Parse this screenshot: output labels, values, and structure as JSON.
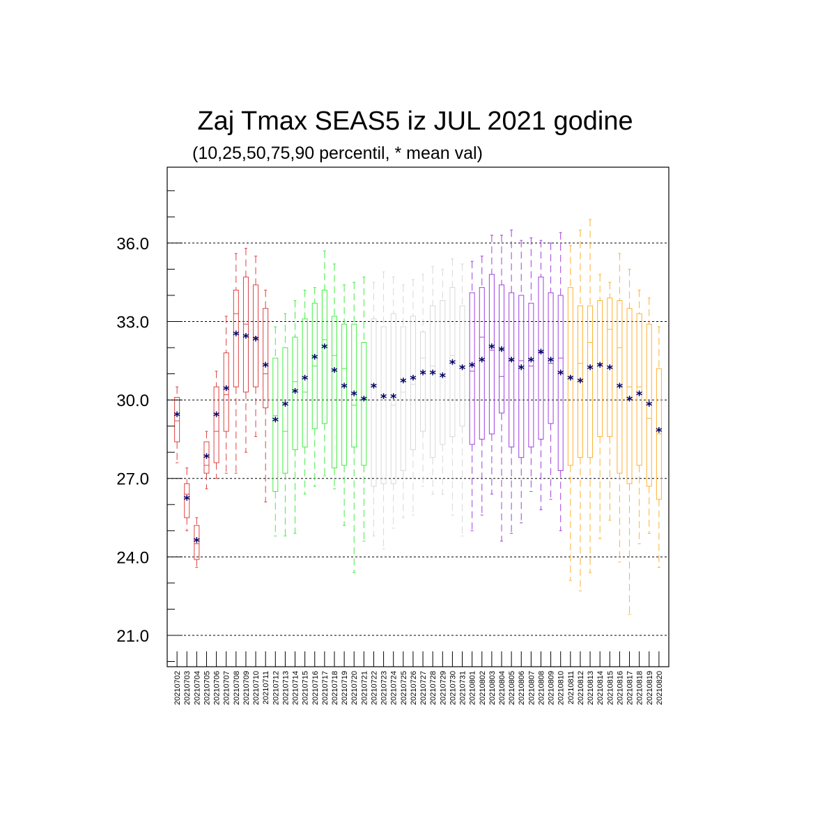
{
  "chart_data": {
    "type": "boxplot",
    "title": "Zaj Tmax SEAS5 iz JUL 2021 godine",
    "subtitle": "(10,25,50,75,90 percentil, * mean val)",
    "xlabel": "",
    "ylabel": "",
    "ylim": [
      19.8,
      38.9
    ],
    "yticks": [
      "21.0",
      "24.0",
      "27.0",
      "30.0",
      "33.0",
      "36.0"
    ],
    "grid": "horizontal dashed at major ticks",
    "mean_marker_color": "#000066",
    "categories": [
      "20210702",
      "20210703",
      "20210704",
      "20210705",
      "20210706",
      "20210707",
      "20210708",
      "20210709",
      "20210710",
      "20210711",
      "20210712",
      "20210713",
      "20210714",
      "20210715",
      "20210716",
      "20210717",
      "20210718",
      "20210719",
      "20210720",
      "20210721",
      "20210722",
      "20210723",
      "20210724",
      "20210725",
      "20210726",
      "20210727",
      "20210728",
      "20210729",
      "20210730",
      "20210731",
      "20210801",
      "20210802",
      "20210803",
      "20210804",
      "20210805",
      "20210806",
      "20210807",
      "20210808",
      "20210809",
      "20210810",
      "20210811",
      "20210812",
      "20210813",
      "20210814",
      "20210815",
      "20210816",
      "20210817",
      "20210818",
      "20210819",
      "20210820"
    ],
    "colors": [
      "#e04040",
      "#e04040",
      "#e04040",
      "#e04040",
      "#e04040",
      "#e04040",
      "#e04040",
      "#e04040",
      "#e04040",
      "#e04040",
      "#40ee40",
      "#40ee40",
      "#40ee40",
      "#40ee40",
      "#40ee40",
      "#40ee40",
      "#40ee40",
      "#40ee40",
      "#40ee40",
      "#40ee40",
      "#d8d8d8",
      "#d8d8d8",
      "#d8d8d8",
      "#d8d8d8",
      "#d8d8d8",
      "#d8d8d8",
      "#d8d8d8",
      "#d8d8d8",
      "#d8d8d8",
      "#d8d8d8",
      "#a040e0",
      "#a040e0",
      "#a040e0",
      "#a040e0",
      "#a040e0",
      "#a040e0",
      "#a040e0",
      "#a040e0",
      "#a040e0",
      "#a040e0",
      "#ffb030",
      "#ffb030",
      "#ffb030",
      "#ffb030",
      "#ffb030",
      "#ffb030",
      "#ffb030",
      "#ffb030",
      "#ffb030",
      "#ffb030"
    ],
    "p10": [
      27.6,
      25.0,
      23.6,
      26.6,
      27.0,
      27.2,
      27.2,
      28.0,
      28.6,
      26.1,
      24.8,
      24.8,
      24.9,
      26.4,
      26.7,
      27.1,
      26.6,
      25.2,
      23.4,
      24.6,
      24.8,
      24.3,
      25.1,
      25.5,
      25.6,
      26.7,
      26.4,
      26.4,
      25.6,
      24.8,
      25.0,
      25.6,
      26.4,
      24.6,
      24.9,
      25.3,
      26.5,
      25.8,
      26.2,
      25.0,
      23.1,
      22.7,
      23.4,
      24.7,
      25.4,
      23.8,
      21.8,
      24.5,
      24.9,
      23.6
    ],
    "p25": [
      28.4,
      25.5,
      23.9,
      27.2,
      27.6,
      28.8,
      30.5,
      30.3,
      30.5,
      29.7,
      26.5,
      27.2,
      28.1,
      28.2,
      28.9,
      29.1,
      27.4,
      27.5,
      28.2,
      27.5,
      26.7,
      26.8,
      26.8,
      27.3,
      28.1,
      28.8,
      27.8,
      28.3,
      28.6,
      29.0,
      28.3,
      28.5,
      28.7,
      29.5,
      28.2,
      27.8,
      28.2,
      28.5,
      29.1,
      27.3,
      27.5,
      27.8,
      27.8,
      28.6,
      28.6,
      27.2,
      26.8,
      27.5,
      26.7,
      26.2
    ],
    "p50": [
      29.2,
      26.4,
      24.5,
      27.5,
      28.8,
      30.2,
      33.3,
      32.9,
      32.4,
      31.0,
      29.4,
      28.8,
      30.7,
      30.3,
      31.3,
      32.3,
      31.7,
      31.2,
      29.8,
      30.0,
      30.6,
      30.1,
      29.8,
      30.3,
      30.6,
      31.6,
      31.3,
      30.9,
      31.7,
      31.3,
      31.1,
      32.4,
      31.9,
      30.9,
      31.5,
      31.5,
      31.3,
      31.8,
      31.4,
      31.6,
      30.9,
      31.4,
      32.2,
      31.4,
      32.7,
      32.0,
      30.5,
      30.5,
      29.3,
      28.7
    ],
    "p75": [
      30.1,
      26.8,
      25.2,
      28.4,
      30.5,
      31.8,
      34.2,
      34.7,
      34.4,
      33.5,
      31.6,
      32.0,
      32.4,
      33.1,
      33.7,
      34.2,
      33.2,
      32.9,
      32.9,
      32.2,
      33.1,
      32.8,
      33.3,
      32.8,
      33.2,
      32.6,
      33.6,
      33.8,
      34.3,
      33.6,
      34.1,
      34.3,
      34.8,
      34.4,
      34.1,
      34.0,
      33.7,
      34.7,
      34.1,
      34.0,
      34.3,
      33.6,
      33.6,
      33.8,
      33.9,
      33.8,
      33.5,
      33.3,
      32.9,
      31.2
    ],
    "p90": [
      30.5,
      27.4,
      25.5,
      28.8,
      31.1,
      33.2,
      35.6,
      35.8,
      35.5,
      34.2,
      32.8,
      33.3,
      33.8,
      34.2,
      34.3,
      35.7,
      35.2,
      34.4,
      34.5,
      34.7,
      34.5,
      34.9,
      34.7,
      34.4,
      34.6,
      34.8,
      35.1,
      35.0,
      35.4,
      35.2,
      35.3,
      35.5,
      36.3,
      36.3,
      36.5,
      36.1,
      36.2,
      36.1,
      36.0,
      36.4,
      35.9,
      36.5,
      36.9,
      34.8,
      34.5,
      35.6,
      35.0,
      34.2,
      33.9,
      32.8
    ],
    "mean": [
      29.4,
      26.2,
      24.6,
      27.8,
      29.4,
      30.4,
      32.5,
      32.4,
      32.3,
      31.3,
      29.2,
      29.8,
      30.3,
      30.8,
      31.6,
      32.0,
      31.1,
      30.5,
      30.2,
      30.0,
      30.5,
      30.1,
      30.1,
      30.7,
      30.8,
      31.0,
      31.0,
      30.9,
      31.4,
      31.2,
      31.3,
      31.5,
      32.0,
      31.9,
      31.5,
      31.2,
      31.5,
      31.8,
      31.5,
      31.0,
      30.8,
      30.7,
      31.2,
      31.3,
      31.2,
      30.5,
      30.0,
      30.2,
      29.8,
      28.8
    ]
  }
}
